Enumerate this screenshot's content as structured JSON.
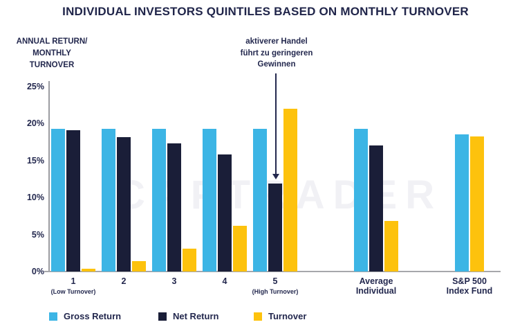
{
  "watermark": "CAPTRADER",
  "y_axis_title_lines": [
    "ANNUAL RETURN/",
    "MONTHLY",
    "TURNOVER"
  ],
  "annotation": {
    "lines": [
      "aktiverer Handel",
      "führt zu geringeren",
      "Gewinnen"
    ],
    "target": "Net Return bar of quintile 5"
  },
  "colors": {
    "gross_return": "#3cb5e5",
    "net_return": "#1a1e38",
    "turnover": "#fdc20d",
    "text_navy": "#23284e",
    "axis_gray": "#a6a7ab",
    "watermark_gray": "#f1f1f5"
  },
  "chart_data": {
    "type": "bar",
    "title": "INDIVIDUAL INVESTORS QUINTILES BASED ON MONTHLY TURNOVER",
    "ylabel": "ANNUAL RETURN/ MONTHLY TURNOVER",
    "xlabel": "",
    "ylim": [
      0,
      25
    ],
    "grid": false,
    "legend_position": "bottom",
    "yticks": [
      {
        "value": 25,
        "label": "25%"
      },
      {
        "value": 20,
        "label": "20%"
      },
      {
        "value": 15,
        "label": "15%"
      },
      {
        "value": 10,
        "label": "10%"
      },
      {
        "value": 5,
        "label": "5%"
      },
      {
        "value": 0,
        "label": "0%"
      }
    ],
    "categories": [
      "1",
      "2",
      "3",
      "4",
      "5",
      "Average Individual",
      "S&P 500 Index Fund"
    ],
    "category_sublabels": [
      "(Low Turnover)",
      "",
      "",
      "",
      "(High Turnover)",
      "",
      ""
    ],
    "series": [
      {
        "name": "Gross Return",
        "color": "#3cb5e5",
        "values": [
          19.3,
          19.3,
          19.3,
          19.3,
          19.3,
          19.3,
          18.5
        ]
      },
      {
        "name": "Net Return",
        "color": "#1a1e38",
        "values": [
          19.1,
          18.2,
          17.3,
          15.8,
          11.9,
          17.0,
          null
        ]
      },
      {
        "name": "Turnover",
        "color": "#fdc20d",
        "values": [
          0.4,
          1.4,
          3.1,
          6.2,
          22.0,
          6.8,
          18.3
        ]
      }
    ],
    "annotation_text": "aktiverer Handel führt zu geringeren Gewinnen"
  }
}
